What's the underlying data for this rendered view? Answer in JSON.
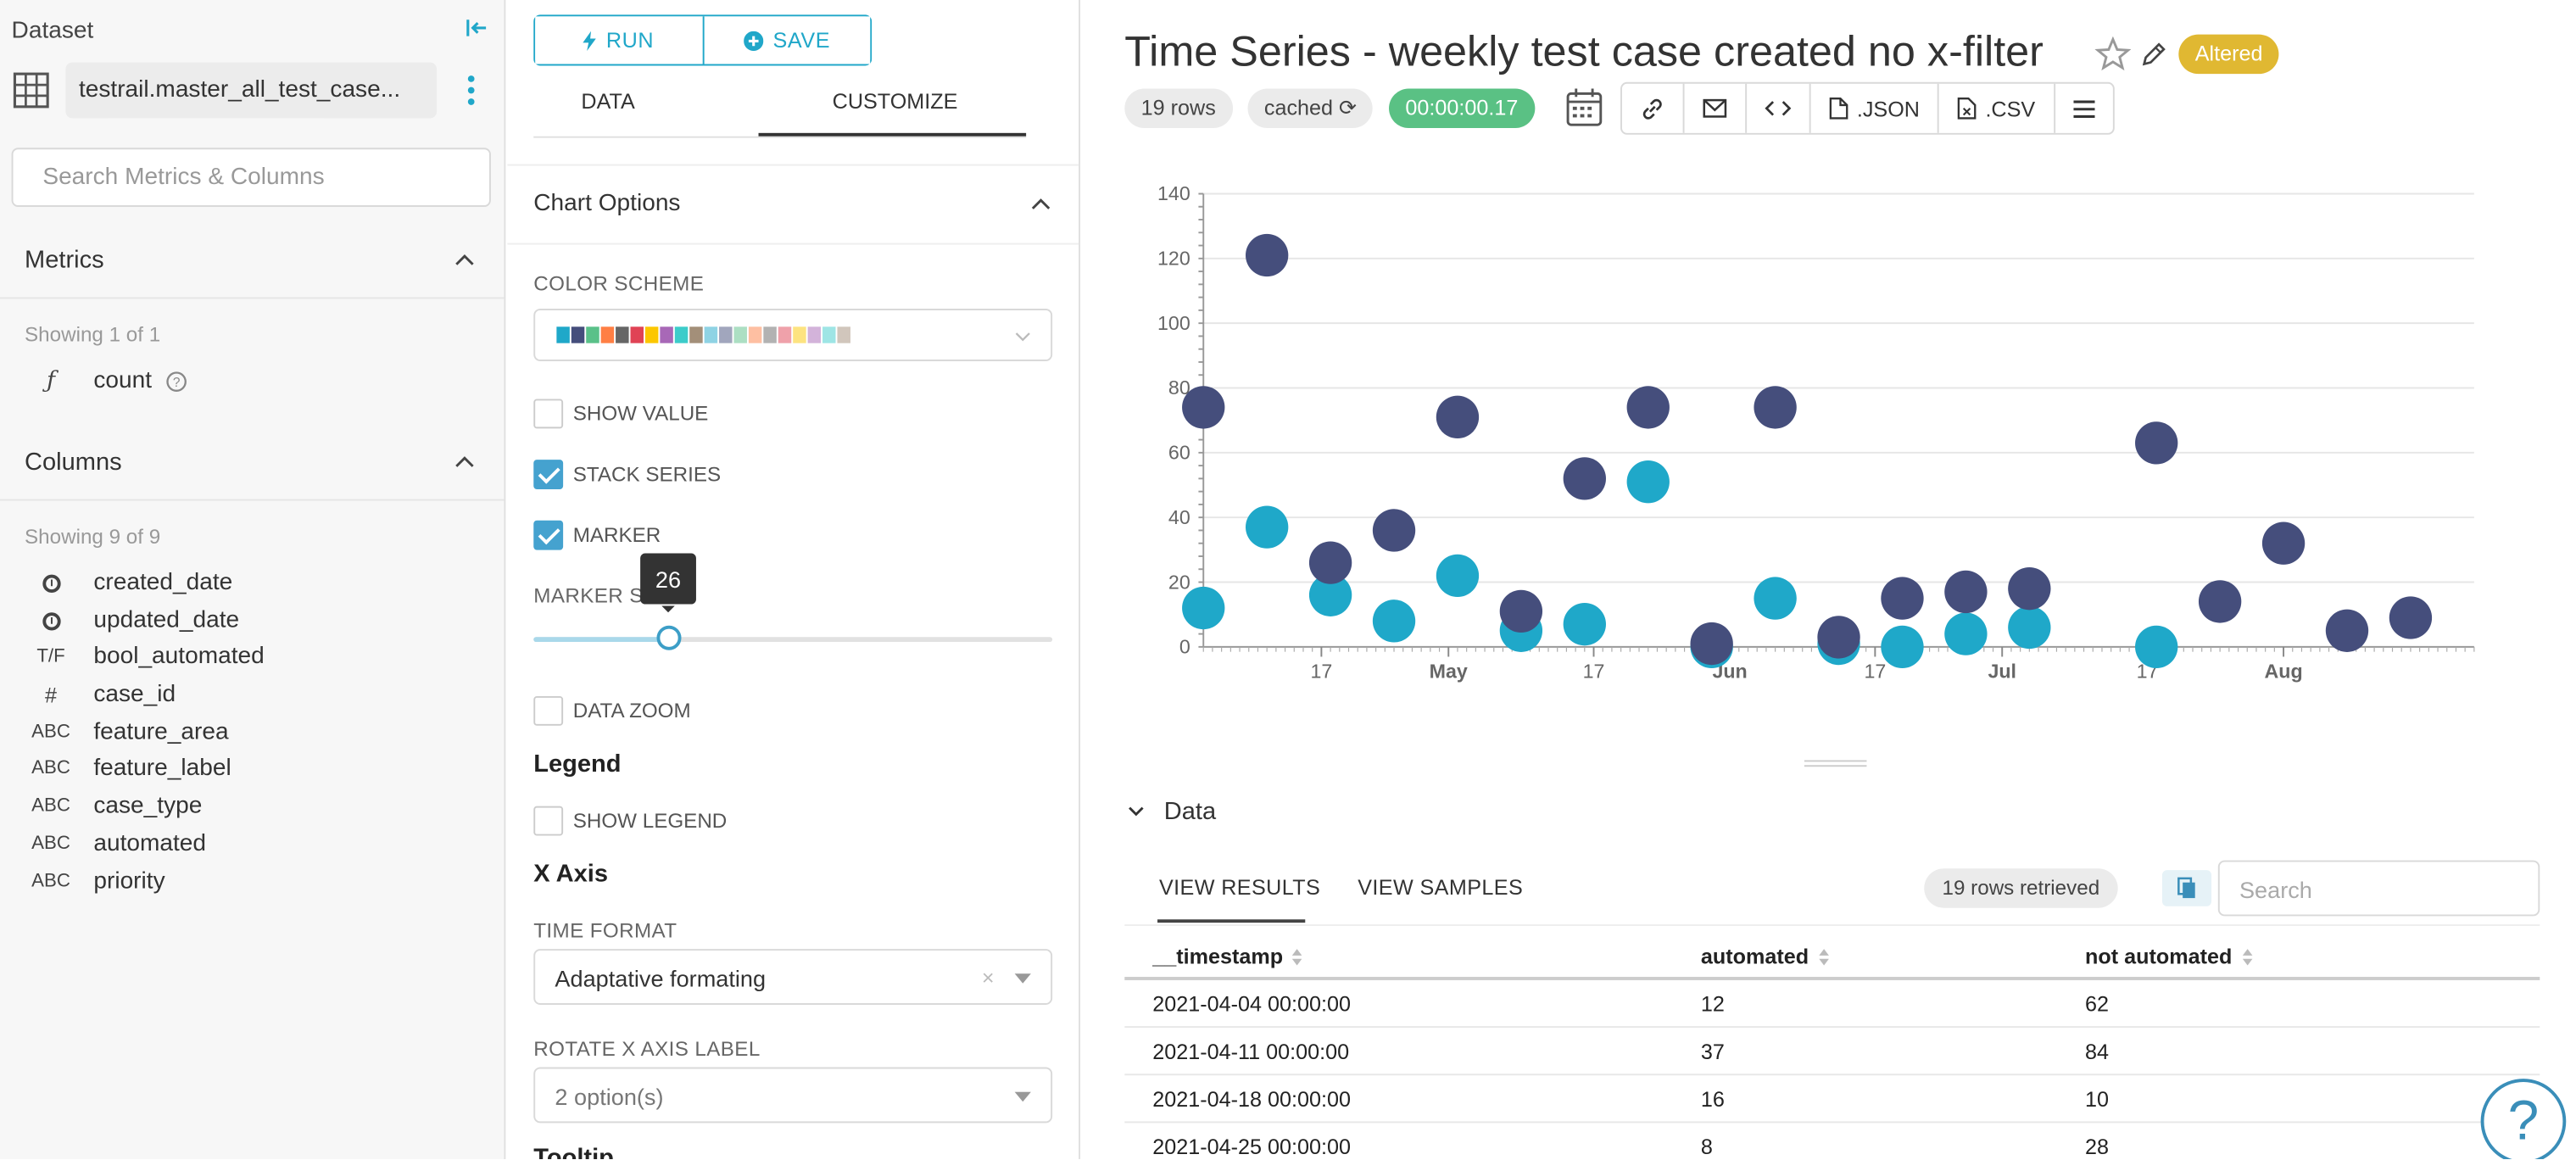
{
  "sidebar": {
    "dataset_label": "Dataset",
    "dataset_name": "testrail.master_all_test_case...",
    "search_placeholder": "Search Metrics & Columns",
    "metrics_title": "Metrics",
    "metrics_showing": "Showing 1 of 1",
    "metrics": [
      {
        "type": "ƒ",
        "name": "count"
      }
    ],
    "columns_title": "Columns",
    "columns_showing": "Showing 9 of 9",
    "columns": [
      {
        "type": "clock-icon",
        "name": "created_date"
      },
      {
        "type": "clock-icon",
        "name": "updated_date"
      },
      {
        "type": "T/F",
        "name": "bool_automated"
      },
      {
        "type": "#",
        "name": "case_id"
      },
      {
        "type": "ABC",
        "name": "feature_area"
      },
      {
        "type": "ABC",
        "name": "feature_label"
      },
      {
        "type": "ABC",
        "name": "case_type"
      },
      {
        "type": "ABC",
        "name": "automated"
      },
      {
        "type": "ABC",
        "name": "priority"
      }
    ]
  },
  "controls": {
    "run_label": "RUN",
    "save_label": "SAVE",
    "tab_data": "DATA",
    "tab_customize": "CUSTOMIZE",
    "chart_options_title": "Chart Options",
    "color_scheme_label": "COLOR SCHEME",
    "swatches": [
      "#1fa8c9",
      "#454e7c",
      "#5ac189",
      "#ff7f44",
      "#666666",
      "#e04355",
      "#fcc700",
      "#a868b7",
      "#3cccca",
      "#a38f79",
      "#8fd3e4",
      "#a1a6bd",
      "#acdfc3",
      "#febfa2",
      "#b2b2b2",
      "#efa1aa",
      "#fde380",
      "#d3b3da",
      "#9ee5e5",
      "#d1c6bc"
    ],
    "show_value_label": "SHOW VALUE",
    "show_value": false,
    "stack_series_label": "STACK SERIES",
    "stack_series": true,
    "marker_label": "MARKER",
    "marker": true,
    "marker_size_label": "MARKER SIZE",
    "marker_size_value": "26",
    "marker_size_fraction": 0.26,
    "data_zoom_label": "DATA ZOOM",
    "data_zoom": false,
    "legend_heading": "Legend",
    "show_legend_label": "SHOW LEGEND",
    "show_legend": false,
    "x_axis_heading": "X Axis",
    "time_format_label": "TIME FORMAT",
    "time_format_value": "Adaptative formating",
    "rotate_label": "ROTATE X AXIS LABEL",
    "rotate_value": "2 option(s)",
    "tooltip_heading": "Tooltip"
  },
  "header": {
    "title": "Time Series - weekly test case created no x-filter",
    "altered_badge": "Altered",
    "rows_pill": "19 rows",
    "cached_pill": "cached",
    "duration_pill": "00:00:00.17",
    "json_label": ".JSON",
    "csv_label": ".CSV"
  },
  "chart_data": {
    "type": "scatter",
    "ylim": [
      0,
      140
    ],
    "y_ticks": [
      "0",
      "20",
      "40",
      "60",
      "80",
      "100",
      "120",
      "140"
    ],
    "x_tick_labels": [
      "17",
      "May",
      "17",
      "Jun",
      "17",
      "Jul",
      "17",
      "Aug"
    ],
    "x_tick_dates": [
      "2021-04-17",
      "2021-05-01",
      "2021-05-17",
      "2021-06-01",
      "2021-06-17",
      "2021-07-01",
      "2021-07-17",
      "2021-08-01"
    ],
    "xlim": [
      "2021-04-04",
      "2021-08-22"
    ],
    "series_colors": [
      "#1fa8c9",
      "#454e7c"
    ],
    "series": [
      {
        "name": "automated",
        "points": [
          [
            "2021-04-04",
            12
          ],
          [
            "2021-04-11",
            37
          ],
          [
            "2021-04-18",
            16
          ],
          [
            "2021-04-25",
            8
          ],
          [
            "2021-05-02",
            22
          ],
          [
            "2021-05-09",
            5
          ],
          [
            "2021-05-16",
            7
          ],
          [
            "2021-05-23",
            51
          ],
          [
            "2021-05-30",
            0
          ],
          [
            "2021-06-06",
            15
          ],
          [
            "2021-06-13",
            1
          ],
          [
            "2021-06-20",
            0
          ],
          [
            "2021-06-27",
            4
          ],
          [
            "2021-07-04",
            6
          ],
          [
            "2021-07-18",
            0
          ]
        ]
      },
      {
        "name": "not automated",
        "points": [
          [
            "2021-04-04",
            74
          ],
          [
            "2021-04-11",
            121
          ],
          [
            "2021-04-18",
            26
          ],
          [
            "2021-04-25",
            36
          ],
          [
            "2021-05-02",
            71
          ],
          [
            "2021-05-09",
            11
          ],
          [
            "2021-05-16",
            52
          ],
          [
            "2021-05-23",
            74
          ],
          [
            "2021-05-30",
            1
          ],
          [
            "2021-06-06",
            74
          ],
          [
            "2021-06-13",
            3
          ],
          [
            "2021-06-20",
            15
          ],
          [
            "2021-06-27",
            17
          ],
          [
            "2021-07-04",
            18
          ],
          [
            "2021-07-18",
            63
          ],
          [
            "2021-07-25",
            14
          ],
          [
            "2021-08-01",
            32
          ],
          [
            "2021-08-08",
            5
          ],
          [
            "2021-08-15",
            9
          ]
        ]
      }
    ]
  },
  "results": {
    "section_title": "Data",
    "tab_results": "VIEW RESULTS",
    "tab_samples": "VIEW SAMPLES",
    "rows_retrieved": "19 rows retrieved",
    "search_placeholder": "Search",
    "columns": [
      "__timestamp",
      "automated",
      "not automated"
    ],
    "rows": [
      [
        "2021-04-04 00:00:00",
        "12",
        "62"
      ],
      [
        "2021-04-11 00:00:00",
        "37",
        "84"
      ],
      [
        "2021-04-18 00:00:00",
        "16",
        "10"
      ],
      [
        "2021-04-25 00:00:00",
        "8",
        "28"
      ]
    ]
  },
  "help_label": "?"
}
